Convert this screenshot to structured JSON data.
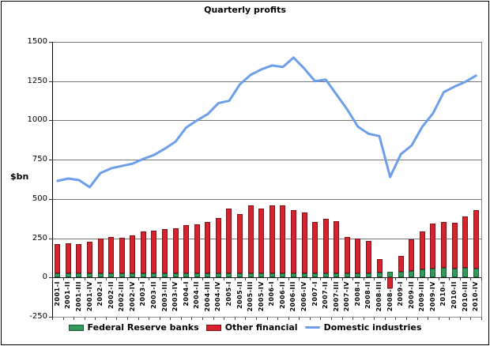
{
  "chart_data": {
    "type": "combo-bar-line",
    "title": "Quarterly profits",
    "ylabel": "$bn",
    "categories": [
      "2001-I",
      "2001-II",
      "2001-III",
      "2001-IV",
      "2002-I",
      "2002-II",
      "2002-III",
      "2002-IV",
      "2003-I",
      "2003-II",
      "2003-III",
      "2003-IV",
      "2004-I",
      "2004-II",
      "2004-III",
      "2004-IV",
      "2005-I",
      "2005-II",
      "2005-III",
      "2005-IV",
      "2006-I",
      "2006-II",
      "2006-III",
      "2006-IV",
      "2007-I",
      "2007-II",
      "2007-III",
      "2007-IV",
      "2008-I",
      "2008-II",
      "2008-III",
      "2008-IV",
      "2009-I",
      "2009-II",
      "2009-III",
      "2009-IV",
      "2010-I",
      "2010-II",
      "2010-III",
      "2010-IV"
    ],
    "series": [
      {
        "name": "Federal Reserve banks",
        "type": "bar",
        "stacked": true,
        "color": "#339A5E",
        "border_color": "#1E5C38",
        "values": [
          25,
          25,
          25,
          25,
          25,
          25,
          25,
          25,
          25,
          25,
          25,
          25,
          25,
          25,
          25,
          25,
          25,
          25,
          25,
          25,
          25,
          25,
          25,
          25,
          25,
          25,
          25,
          25,
          25,
          25,
          30,
          35,
          35,
          40,
          50,
          55,
          60,
          55,
          60,
          55
        ]
      },
      {
        "name": "Other financial",
        "type": "bar",
        "stacked": true,
        "color": "#D6232E",
        "border_color": "#7F1218",
        "values": [
          190,
          195,
          190,
          205,
          225,
          235,
          230,
          245,
          270,
          275,
          285,
          290,
          310,
          315,
          330,
          355,
          415,
          380,
          435,
          415,
          435,
          435,
          405,
          390,
          330,
          350,
          335,
          235,
          225,
          210,
          85,
          -70,
          100,
          205,
          245,
          290,
          295,
          295,
          330,
          375
        ]
      },
      {
        "name": "Domestic industries",
        "type": "line",
        "color": "#6D9EEA",
        "values": [
          615,
          630,
          620,
          575,
          665,
          695,
          710,
          725,
          755,
          780,
          820,
          865,
          955,
          1000,
          1040,
          1110,
          1125,
          1230,
          1290,
          1325,
          1350,
          1340,
          1400,
          1330,
          1250,
          1260,
          1165,
          1070,
          960,
          915,
          900,
          640,
          785,
          840,
          960,
          1045,
          1180,
          1215,
          1245,
          1285
        ]
      }
    ],
    "ylim": [
      -250,
      1500
    ],
    "yticks": [
      1500,
      1250,
      1000,
      750,
      500,
      250,
      0,
      -250
    ],
    "grid": true,
    "legend_position": "bottom"
  }
}
